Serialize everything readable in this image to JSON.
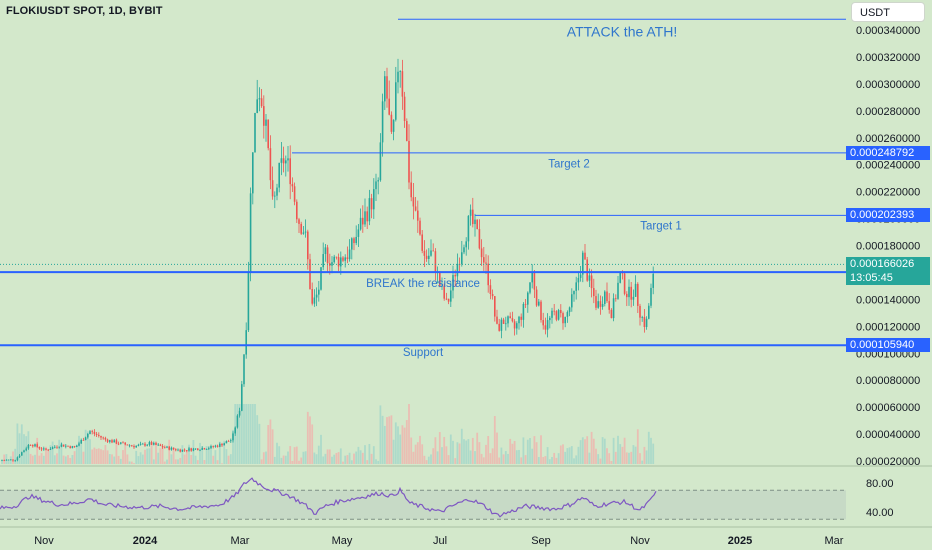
{
  "header": {
    "symbol_title": "FLOKIUSDT SPOT, 1D, BYBIT",
    "currency_button": "USDT"
  },
  "colors": {
    "background": "#d3e8cb",
    "bull": "#26a69a",
    "bear": "#ef5350",
    "level_line": "#2962ff",
    "annotation_text": "#2f76cc",
    "rsi_line": "#7e57c2"
  },
  "chart_data": [
    {
      "type": "candlestick",
      "title": "FLOKIUSDT SPOT, 1D, BYBIT",
      "ylim": [
        2e-05,
        0.000352
      ],
      "y_ticks": [
        "0.000340000",
        "0.000320000",
        "0.000300000",
        "0.000280000",
        "0.000260000",
        "0.000240000",
        "0.000220000",
        "0.000200000",
        "0.000180000",
        "0.000160000",
        "0.000140000",
        "0.000120000",
        "0.000100000",
        "0.000080000",
        "0.000060000",
        "0.000040000",
        "0.000020000"
      ],
      "x_ticks": [
        "Nov",
        "2024",
        "Mar",
        "May",
        "Jul",
        "Sep",
        "Nov",
        "2025",
        "Mar"
      ],
      "close_path": [
        [
          0,
          2.05e-05
        ],
        [
          15,
          2.1e-05
        ],
        [
          30,
          3.3e-05
        ],
        [
          45,
          2.8e-05
        ],
        [
          60,
          3.2e-05
        ],
        [
          75,
          3e-05
        ],
        [
          90,
          4.2e-05
        ],
        [
          105,
          3.6e-05
        ],
        [
          120,
          3.3e-05
        ],
        [
          135,
          3.1e-05
        ],
        [
          150,
          3.3e-05
        ],
        [
          165,
          3e-05
        ],
        [
          180,
          2.8e-05
        ],
        [
          195,
          2.9e-05
        ],
        [
          210,
          3e-05
        ],
        [
          220,
          3.2e-05
        ],
        [
          232,
          3.6e-05
        ],
        [
          240,
          6e-05
        ],
        [
          247,
          0.00013
        ],
        [
          252,
          0.00025
        ],
        [
          258,
          0.0003
        ],
        [
          263,
          0.000285
        ],
        [
          268,
          0.00025
        ],
        [
          273,
          0.000205
        ],
        [
          278,
          0.00023
        ],
        [
          284,
          0.000245
        ],
        [
          290,
          0.000235
        ],
        [
          298,
          0.0002
        ],
        [
          305,
          0.00019
        ],
        [
          312,
          0.000135
        ],
        [
          318,
          0.000145
        ],
        [
          325,
          0.000175
        ],
        [
          332,
          0.000168
        ],
        [
          340,
          0.00017
        ],
        [
          350,
          0.000175
        ],
        [
          360,
          0.000195
        ],
        [
          370,
          0.00021
        ],
        [
          378,
          0.000225
        ],
        [
          385,
          0.000305
        ],
        [
          392,
          0.00025
        ],
        [
          399,
          0.000325
        ],
        [
          405,
          0.000275
        ],
        [
          410,
          0.00022
        ],
        [
          418,
          0.000195
        ],
        [
          425,
          0.00017
        ],
        [
          432,
          0.000175
        ],
        [
          440,
          0.00015
        ],
        [
          447,
          0.000135
        ],
        [
          455,
          0.00016
        ],
        [
          462,
          0.00018
        ],
        [
          470,
          0.0002
        ],
        [
          476,
          0.00019
        ],
        [
          482,
          0.000175
        ],
        [
          490,
          0.00015
        ],
        [
          497,
          0.000118
        ],
        [
          505,
          0.000125
        ],
        [
          515,
          0.000118
        ],
        [
          525,
          0.000135
        ],
        [
          532,
          0.00016
        ],
        [
          538,
          0.000135
        ],
        [
          545,
          0.00012
        ],
        [
          555,
          0.00013
        ],
        [
          565,
          0.000125
        ],
        [
          575,
          0.000145
        ],
        [
          583,
          0.000172
        ],
        [
          590,
          0.00015
        ],
        [
          597,
          0.000135
        ],
        [
          605,
          0.000145
        ],
        [
          612,
          0.00013
        ],
        [
          620,
          0.000158
        ],
        [
          628,
          0.000143
        ],
        [
          635,
          0.000148
        ],
        [
          641,
          0.000128
        ],
        [
          646,
          0.00012
        ],
        [
          650,
          0.000142
        ],
        [
          655,
          0.000162
        ]
      ],
      "levels": [
        {
          "price": 0.000348,
          "x_from_date": "2024-05-25",
          "style": "thin"
        },
        {
          "price": 0.000248792,
          "label": "0.000248792",
          "style": "thin"
        },
        {
          "price": 0.000202393,
          "label": "0.000202393",
          "style": "thin"
        },
        {
          "price": 0.000160233,
          "label": "0.000160233",
          "style": "thick"
        },
        {
          "price": 0.00010594,
          "label": "0.000105940",
          "style": "thick"
        }
      ],
      "current_price": {
        "value": 0.000166026,
        "label": "0.000166026",
        "countdown": "13:05:45"
      },
      "annotations": [
        {
          "text": "ATTACK the ATH!",
          "price": 0.000338
        },
        {
          "text": "Target 2",
          "price": 0.000241
        },
        {
          "text": "Target 1",
          "price": 0.000195
        },
        {
          "text": "BREAK the resistance",
          "price": 0.000152
        },
        {
          "text": "Support",
          "price": 0.000101
        }
      ]
    },
    {
      "type": "line",
      "title": "",
      "ylim": [
        30,
        90
      ],
      "y_ticks": [
        "80.00",
        "40.00"
      ],
      "bands": [
        70,
        30
      ],
      "values_path": [
        [
          0,
          45
        ],
        [
          15,
          48
        ],
        [
          30,
          62
        ],
        [
          45,
          55
        ],
        [
          60,
          50
        ],
        [
          75,
          52
        ],
        [
          90,
          58
        ],
        [
          105,
          50
        ],
        [
          120,
          48
        ],
        [
          140,
          46
        ],
        [
          160,
          48
        ],
        [
          180,
          44
        ],
        [
          200,
          47
        ],
        [
          220,
          50
        ],
        [
          235,
          62
        ],
        [
          245,
          80
        ],
        [
          252,
          86
        ],
        [
          260,
          78
        ],
        [
          268,
          72
        ],
        [
          278,
          68
        ],
        [
          290,
          62
        ],
        [
          305,
          50
        ],
        [
          315,
          38
        ],
        [
          325,
          48
        ],
        [
          340,
          55
        ],
        [
          360,
          60
        ],
        [
          380,
          66
        ],
        [
          392,
          62
        ],
        [
          400,
          70
        ],
        [
          410,
          52
        ],
        [
          425,
          46
        ],
        [
          440,
          40
        ],
        [
          455,
          50
        ],
        [
          470,
          58
        ],
        [
          485,
          48
        ],
        [
          497,
          35
        ],
        [
          510,
          40
        ],
        [
          525,
          48
        ],
        [
          540,
          46
        ],
        [
          555,
          44
        ],
        [
          570,
          50
        ],
        [
          583,
          60
        ],
        [
          595,
          48
        ],
        [
          610,
          52
        ],
        [
          625,
          54
        ],
        [
          640,
          42
        ],
        [
          650,
          55
        ],
        [
          656,
          68
        ]
      ]
    }
  ]
}
